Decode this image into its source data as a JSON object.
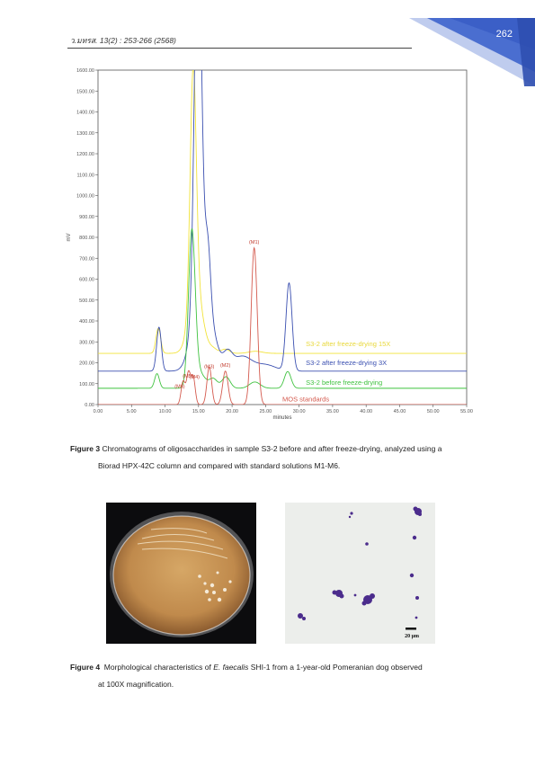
{
  "header": {
    "journal": "ว.มทรส. 13(2) : 253-266 (2568)",
    "page_number": "262"
  },
  "chart_data": {
    "type": "line",
    "ylabel": "mV",
    "xlabel": "minutes",
    "xlim": [
      0,
      55
    ],
    "ylim": [
      0,
      1600
    ],
    "x_ticks": [
      "0.00",
      "5.00",
      "10.00",
      "15.00",
      "20.00",
      "25.00",
      "30.00",
      "35.00",
      "40.00",
      "45.00",
      "50.00",
      "55.00"
    ],
    "y_ticks": [
      "0.00",
      "100.00",
      "200.00",
      "300.00",
      "400.00",
      "500.00",
      "600.00",
      "700.00",
      "800.00",
      "900.00",
      "1000.00",
      "1100.00",
      "1200.00",
      "1300.00",
      "1400.00",
      "1500.00",
      "1600.00"
    ],
    "series": [
      {
        "name": "S3-2 after freeze-drying 15X",
        "color": "#f2e33a",
        "baseline": 245,
        "peaks": [
          [
            9.0,
            120,
            0.35
          ],
          [
            14.2,
            1100,
            0.45
          ],
          [
            14.6,
            300,
            1.0
          ],
          [
            17.2,
            20,
            0.6
          ],
          [
            19.0,
            20,
            0.6
          ],
          [
            23.5,
            10,
            1.0
          ]
        ]
      },
      {
        "name": "S3-2 after freeze-drying 3X",
        "color": "#3a4fb0",
        "baseline": 160,
        "peaks": [
          [
            9.1,
            210,
            0.35
          ],
          [
            14.9,
            1800,
            0.5
          ],
          [
            15.4,
            500,
            1.2
          ],
          [
            16.4,
            260,
            0.4
          ],
          [
            17.5,
            60,
            0.7
          ],
          [
            19.3,
            80,
            0.7
          ],
          [
            21.5,
            70,
            1.4
          ],
          [
            25.0,
            30,
            1.5
          ],
          [
            28.5,
            420,
            0.45
          ]
        ]
      },
      {
        "name": "S3-2 before freeze-drying",
        "color": "#3fc23f",
        "baseline": 78,
        "peaks": [
          [
            8.8,
            70,
            0.35
          ],
          [
            14.0,
            740,
            0.5
          ],
          [
            15.2,
            70,
            0.8
          ],
          [
            17.2,
            45,
            0.6
          ],
          [
            19.1,
            55,
            0.6
          ],
          [
            23.4,
            30,
            0.8
          ],
          [
            28.3,
            80,
            0.5
          ]
        ]
      },
      {
        "name": "MOS standards",
        "color": "#d45a4e",
        "baseline": 0,
        "peaks": [
          [
            12.7,
            110,
            0.3
          ],
          [
            13.5,
            150,
            0.3
          ],
          [
            14.2,
            130,
            0.3
          ],
          [
            16.6,
            180,
            0.35
          ],
          [
            19.0,
            160,
            0.4
          ],
          [
            23.3,
            750,
            0.45
          ]
        ]
      }
    ],
    "peak_labels": [
      {
        "text": "(M1)",
        "x": 23.3,
        "y": 770
      },
      {
        "text": "(M2)",
        "x": 19.0,
        "y": 180
      },
      {
        "text": "(M3)",
        "x": 16.6,
        "y": 175
      },
      {
        "text": "(M4)",
        "x": 14.4,
        "y": 125
      },
      {
        "text": "(M5)",
        "x": 13.4,
        "y": 130
      },
      {
        "text": "(M6)",
        "x": 12.2,
        "y": 80
      }
    ],
    "series_labels": [
      {
        "text": "S3-2 after freeze-drying 15X",
        "color": "#e8d83a",
        "x": 31.0,
        "y": 280
      },
      {
        "text": "S3-2 after freeze-drying 3X",
        "color": "#3a4fb0",
        "x": 31.0,
        "y": 190
      },
      {
        "text": "S3-2 before freeze-drying",
        "color": "#3fc23f",
        "x": 31.0,
        "y": 95
      },
      {
        "text": "MOS standards",
        "color": "#d45a4e",
        "x": 27.5,
        "y": 15
      }
    ]
  },
  "figure3": {
    "label": "Figure 3",
    "caption_line1": "Chromatograms of oligosaccharides in sample S3-2 before and after freeze-drying, analyzed using a",
    "caption_line2": "Biorad HPX-42C column and compared with standard solutions M1-M6."
  },
  "figure4": {
    "label": "Figure 4",
    "caption_pre": "Morphological characteristics of ",
    "caption_italic": "E. faecalis",
    "caption_post": " SHI-1 from a 1-year-old Pomeranian dog observed",
    "caption_line2": "at 100X magnification.",
    "scale_bar": "20 μm"
  },
  "colors": {
    "corner_dark": "#3b5fc7",
    "corner_light": "#a9bbe8",
    "stain": "#4b2c8c",
    "agar": "#c9995a"
  }
}
